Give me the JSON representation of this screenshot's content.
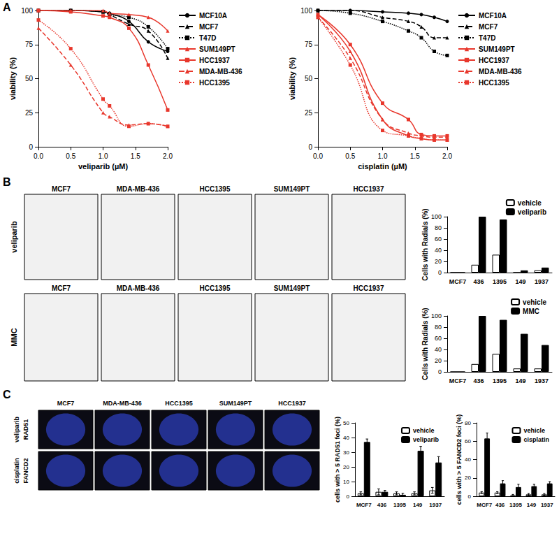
{
  "panel_labels": [
    "A",
    "B",
    "C"
  ],
  "images": {
    "B": {
      "columns": [
        "MCF7",
        "MDA-MB-436",
        "HCC1395",
        "SUM149PT",
        "HCC1937"
      ],
      "rows": [
        [
          "veliparib"
        ],
        [
          "MMC"
        ]
      ]
    },
    "C": {
      "columns": [
        "MCF7",
        "MDA-MB-436",
        "HCC1395",
        "SUM149PT",
        "HCC1937"
      ],
      "rows": [
        [
          "veliparib",
          "RAD51"
        ],
        [
          "cisplatin",
          "FANCD2"
        ]
      ]
    }
  },
  "chart_data": [
    {
      "type": "line",
      "xlabel": "veliparib (µM)",
      "ylabel": "viability (%)",
      "x": [
        0,
        0.5,
        1.0,
        1.1,
        1.4,
        1.7,
        2.0
      ],
      "xlim": [
        0,
        2
      ],
      "xticks": [
        {
          "value": 0,
          "label": "0.0"
        },
        {
          "value": 0.5,
          "label": "0.5"
        },
        {
          "value": 1,
          "label": "1.0"
        },
        {
          "value": 1.5,
          "label": "1.5"
        },
        {
          "value": 2,
          "label": "2.0"
        }
      ],
      "ylim": [
        0,
        100
      ],
      "yticks": [
        0,
        25,
        50,
        75,
        100
      ],
      "grid": false,
      "legend": "right",
      "series": [
        {
          "name": "MCF10A",
          "color": "#000000",
          "marker": "circle",
          "line_style": "solid",
          "values": [
            100,
            100,
            99,
            98,
            92,
            77,
            70
          ]
        },
        {
          "name": "MCF7",
          "color": "#000000",
          "marker": "triangle",
          "line_style": "dashed",
          "values": [
            100,
            100,
            99,
            97,
            90,
            85,
            65
          ]
        },
        {
          "name": "T47D",
          "color": "#000000",
          "marker": "square",
          "line_style": "dotted",
          "values": [
            100,
            100,
            99,
            97,
            95,
            88,
            72
          ]
        },
        {
          "name": "SUM149PT",
          "color": "#e8372c",
          "marker": "triangle",
          "line_style": "solid",
          "values": [
            100,
            100,
            100,
            98,
            97,
            95,
            85
          ]
        },
        {
          "name": "HCC1937",
          "color": "#e8372c",
          "marker": "square",
          "line_style": "solid",
          "values": [
            100,
            99,
            96,
            95,
            87,
            60,
            27
          ]
        },
        {
          "name": "MDA-MB-436",
          "color": "#e8372c",
          "marker": "triangle",
          "line_style": "dashed",
          "values": [
            87,
            60,
            25,
            22,
            16,
            17,
            15
          ]
        },
        {
          "name": "HCC1395",
          "color": "#e8372c",
          "marker": "square",
          "line_style": "dotted",
          "values": [
            93,
            72,
            35,
            30,
            15,
            17,
            15
          ]
        }
      ]
    },
    {
      "type": "line",
      "xlabel": "cisplatin (µM)",
      "ylabel": "viability (%)",
      "x": [
        0,
        0.5,
        1.0,
        1.4,
        1.6,
        1.8,
        2.0
      ],
      "xlim": [
        0,
        2
      ],
      "xticks": [
        {
          "value": 0,
          "label": "0.0"
        },
        {
          "value": 0.5,
          "label": "0.5"
        },
        {
          "value": 1,
          "label": "1.0"
        },
        {
          "value": 1.5,
          "label": "1.5"
        },
        {
          "value": 2,
          "label": "2.0"
        }
      ],
      "ylim": [
        0,
        100
      ],
      "yticks": [
        0,
        25,
        50,
        75,
        100
      ],
      "grid": false,
      "legend": "right",
      "series": [
        {
          "name": "MCF10A",
          "color": "#000000",
          "marker": "circle",
          "line_style": "solid",
          "values": [
            100,
            100,
            99,
            98,
            97,
            95,
            92
          ]
        },
        {
          "name": "MCF7",
          "color": "#000000",
          "marker": "triangle",
          "line_style": "dashed",
          "values": [
            100,
            100,
            95,
            92,
            88,
            80,
            80
          ]
        },
        {
          "name": "T47D",
          "color": "#000000",
          "marker": "square",
          "line_style": "dotted",
          "values": [
            100,
            98,
            92,
            85,
            80,
            70,
            67
          ]
        },
        {
          "name": "SUM149PT",
          "color": "#e8372c",
          "marker": "triangle",
          "line_style": "solid",
          "values": [
            97,
            70,
            20,
            8,
            6,
            5,
            5
          ]
        },
        {
          "name": "HCC1937",
          "color": "#e8372c",
          "marker": "square",
          "line_style": "solid",
          "values": [
            97,
            75,
            32,
            20,
            9,
            8,
            8
          ]
        },
        {
          "name": "MDA-MB-436",
          "color": "#e8372c",
          "marker": "triangle",
          "line_style": "dashed",
          "values": [
            95,
            65,
            20,
            10,
            8,
            7,
            7
          ]
        },
        {
          "name": "HCC1395",
          "color": "#e8372c",
          "marker": "square",
          "line_style": "dotted",
          "values": [
            95,
            60,
            12,
            8,
            6,
            5,
            5
          ]
        }
      ]
    },
    {
      "type": "bar",
      "ylabel": "Cells with Radials (%)",
      "categories": [
        "MCF7",
        "436",
        "1395",
        "149",
        "1937"
      ],
      "ylim": [
        0,
        100
      ],
      "yticks": [
        0,
        20,
        40,
        60,
        80,
        100
      ],
      "grid": false,
      "legend": "top right",
      "series": [
        {
          "name": "vehicle",
          "color": "#ffffff",
          "values": [
            0,
            14,
            32,
            0,
            4
          ]
        },
        {
          "name": "veliparib",
          "color": "#000000",
          "values": [
            0,
            100,
            95,
            4,
            9
          ]
        }
      ]
    },
    {
      "type": "bar",
      "ylabel": "Cells with Radials (%)",
      "categories": [
        "MCF7",
        "436",
        "1395",
        "149",
        "1937"
      ],
      "ylim": [
        0,
        100
      ],
      "yticks": [
        0,
        20,
        40,
        60,
        80,
        100
      ],
      "grid": false,
      "legend": "top right",
      "series": [
        {
          "name": "vehicle",
          "color": "#ffffff",
          "values": [
            0,
            14,
            32,
            6,
            6
          ]
        },
        {
          "name": "MMC",
          "color": "#000000",
          "values": [
            0,
            100,
            93,
            68,
            48
          ]
        }
      ]
    },
    {
      "type": "bar",
      "ylabel": "cells with > 5 RAD51 foci (%)",
      "categories": [
        "MCF7",
        "436",
        "1395",
        "149",
        "1937"
      ],
      "ylim": [
        0,
        50
      ],
      "yticks": [
        0,
        10,
        20,
        30,
        40,
        50
      ],
      "grid": false,
      "legend": "top right",
      "series": [
        {
          "name": "vehicle",
          "color": "#ffffff",
          "values": [
            2,
            3,
            2,
            2,
            4
          ],
          "errors": [
            1,
            2,
            1,
            1,
            2
          ]
        },
        {
          "name": "veliparib",
          "color": "#000000",
          "values": [
            37,
            3,
            1,
            31,
            23
          ],
          "errors": [
            2,
            1,
            1,
            3,
            4
          ]
        }
      ]
    },
    {
      "type": "bar",
      "ylabel": "cells with > 5 FANCD2 foci (%)",
      "categories": [
        "MCF7",
        "436",
        "1395",
        "149",
        "1937"
      ],
      "ylim": [
        0,
        80
      ],
      "yticks": [
        0,
        20,
        40,
        60,
        80
      ],
      "grid": false,
      "legend": "top right",
      "series": [
        {
          "name": "vehicle",
          "color": "#ffffff",
          "values": [
            4,
            4,
            1,
            2,
            2
          ],
          "errors": [
            1,
            1,
            1,
            1,
            1
          ]
        },
        {
          "name": "cisplatin",
          "color": "#000000",
          "values": [
            63,
            14,
            10,
            11,
            14
          ],
          "errors": [
            6,
            3,
            3,
            2,
            2
          ]
        }
      ]
    }
  ]
}
